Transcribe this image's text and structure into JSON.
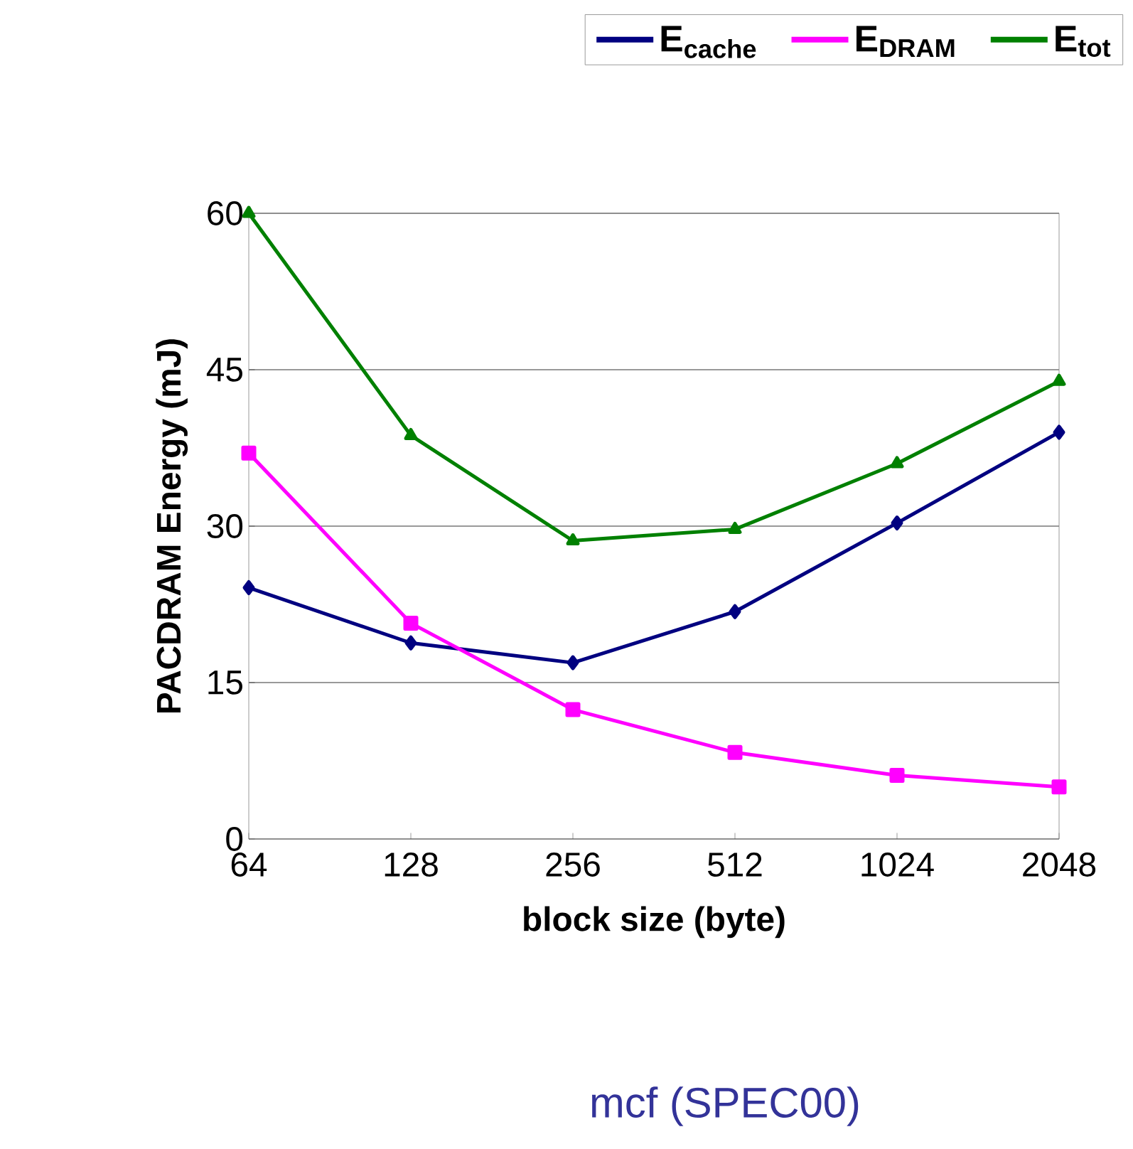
{
  "chart_data": {
    "type": "line",
    "ylabel": "PACDRAM Energy (mJ)",
    "xlabel": "block size (byte)",
    "categories": [
      "64",
      "128",
      "256",
      "512",
      "1024",
      "2048"
    ],
    "series": [
      {
        "name": "E$_{cache}$",
        "color": "#000080",
        "marker": "diamond",
        "values": [
          24.1,
          18.8,
          16.9,
          21.8,
          30.3,
          39.0
        ]
      },
      {
        "name": "E$_{DRAM}$",
        "color": "#ff00ff",
        "marker": "square",
        "values": [
          37.0,
          20.7,
          12.4,
          8.3,
          6.1,
          5.0
        ]
      },
      {
        "name": "E$_{tot}$",
        "color": "#008000",
        "marker": "triangle",
        "values": [
          60,
          38.7,
          28.6,
          29.7,
          36.0,
          43.9
        ]
      }
    ],
    "ylim": [
      0,
      60
    ],
    "yticks": [
      0,
      15,
      30,
      45,
      60
    ],
    "grid": "y",
    "legend": "top",
    "annotations": [
      "mcf (SPEC00)"
    ]
  }
}
